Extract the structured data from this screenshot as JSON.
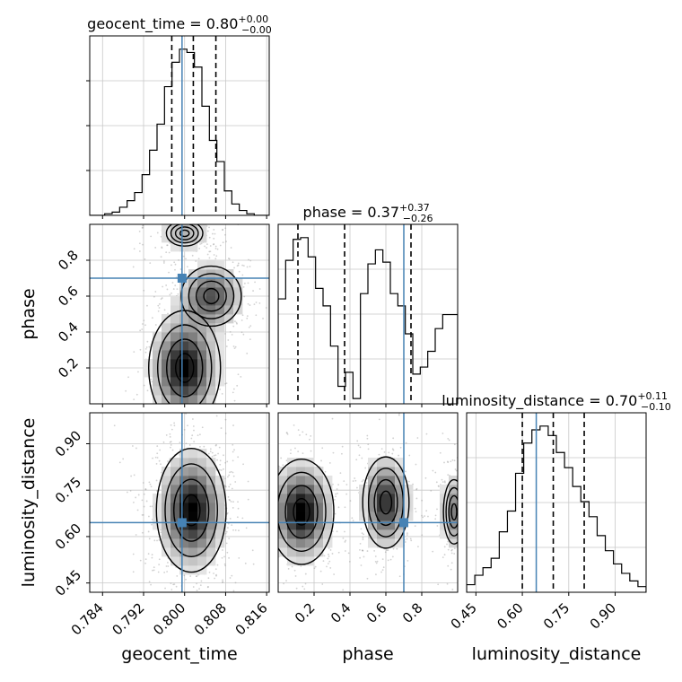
{
  "chart_data": {
    "type": "corner",
    "params": [
      "geocent_time",
      "phase",
      "luminosity_distance"
    ],
    "injection": {
      "geocent_time": 0.7995,
      "phase": 0.7,
      "luminosity_distance": 0.645
    },
    "colors": {
      "injection": "#4682b4",
      "contour": "#000000",
      "grid": "#c8c8c8"
    },
    "diagonal": [
      {
        "param": "geocent_time",
        "title_prefix": "geocent_time = ",
        "title_median": "0.80",
        "title_plus": "+0.00",
        "title_minus": "−0.00",
        "range": [
          0.7815,
          0.8165
        ],
        "ticks": [
          0.784,
          0.792,
          0.8,
          0.808,
          0.816
        ],
        "tick_labels": [
          "0.784",
          "0.792",
          "0.800",
          "0.808",
          "0.816"
        ],
        "xlabel": "geocent_time",
        "quantiles": [
          0.7975,
          0.8017,
          0.8061
        ],
        "hist": [
          0,
          0,
          1,
          2,
          5,
          9,
          14,
          25,
          40,
          56,
          79,
          94,
          102,
          100,
          91,
          67,
          46,
          33,
          15,
          7,
          3,
          1,
          0,
          0
        ]
      },
      {
        "param": "phase",
        "title_prefix": "phase = ",
        "title_median": "0.37",
        "title_plus": "+0.37",
        "title_minus": "−0.26",
        "range": [
          0.0,
          1.0
        ],
        "ticks": [
          0.2,
          0.4,
          0.6,
          0.8
        ],
        "tick_labels": [
          "0.2",
          "0.4",
          "0.6",
          "0.8"
        ],
        "xlabel": "phase",
        "quantiles": [
          0.11,
          0.37,
          0.74
        ],
        "hist": [
          60,
          82,
          94,
          95,
          84,
          66,
          56,
          33,
          10,
          18,
          3,
          63,
          80,
          88,
          81,
          63,
          56,
          40,
          17,
          21,
          30,
          43,
          51,
          51
        ]
      },
      {
        "param": "luminosity_distance",
        "title_prefix": "luminosity_distance = ",
        "title_median": "0.70",
        "title_plus": "+0.11",
        "title_minus": "−0.10",
        "range": [
          0.42,
          1.0
        ],
        "ticks": [
          0.45,
          0.6,
          0.75,
          0.9
        ],
        "tick_labels": [
          "0.45",
          "0.60",
          "0.75",
          "0.90"
        ],
        "xlabel": "luminosity_distance",
        "quantiles": [
          0.6,
          0.7,
          0.8
        ],
        "hist": [
          4,
          9,
          13,
          18,
          32,
          43,
          63,
          79,
          86,
          88,
          83,
          74,
          66,
          56,
          48,
          40,
          30,
          22,
          15,
          10,
          6,
          3
        ]
      }
    ],
    "offdiagonal": [
      {
        "x": "geocent_time",
        "y": "phase",
        "yticks": [
          0.2,
          0.4,
          0.6,
          0.8
        ],
        "ytick_labels": [
          "0.2",
          "0.4",
          "0.6",
          "0.8"
        ],
        "ylabel": "phase",
        "blobs": [
          {
            "cx": 0.8,
            "cy": 0.2,
            "sx": 0.0035,
            "sy": 0.16,
            "w": 1.0
          },
          {
            "cx": 0.8052,
            "cy": 0.6,
            "sx": 0.0035,
            "sy": 0.1,
            "w": 0.7
          },
          {
            "cx": 0.8,
            "cy": 0.95,
            "sx": 0.003,
            "sy": 0.06,
            "w": 0.35
          }
        ]
      },
      {
        "x": "geocent_time",
        "y": "luminosity_distance",
        "yticks": [
          0.45,
          0.6,
          0.75,
          0.9
        ],
        "ytick_labels": [
          "0.45",
          "0.60",
          "0.75",
          "0.90"
        ],
        "ylabel": "luminosity_distance",
        "blobs": [
          {
            "cx": 0.8013,
            "cy": 0.685,
            "sx": 0.0034,
            "sy": 0.1,
            "w": 1.0
          }
        ]
      },
      {
        "x": "phase",
        "y": "luminosity_distance",
        "blobs": [
          {
            "cx": 0.13,
            "cy": 0.68,
            "sx": 0.09,
            "sy": 0.085,
            "w": 1.0
          },
          {
            "cx": 0.6,
            "cy": 0.71,
            "sx": 0.07,
            "sy": 0.08,
            "w": 0.85
          },
          {
            "cx": 0.98,
            "cy": 0.68,
            "sx": 0.04,
            "sy": 0.07,
            "w": 0.55
          }
        ]
      }
    ]
  }
}
